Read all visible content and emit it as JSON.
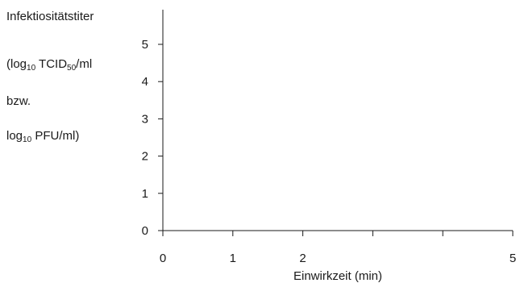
{
  "chart_data": {
    "type": "line",
    "title": "",
    "ylabel_lines": [
      {
        "text": "Infektiositätstiter"
      },
      {
        "pre": "(log",
        "sub1": "10",
        "mid": " TCID",
        "sub2": "50",
        "post": "/ml"
      },
      {
        "text": "bzw."
      },
      {
        "pre": "log",
        "sub1": "10",
        "mid": " PFU/ml)",
        "sub2": "",
        "post": ""
      }
    ],
    "xlabel": "Einwirkzeit (min)",
    "xlim": [
      0,
      5
    ],
    "ylim": [
      0,
      5
    ],
    "x_ticks": [
      0,
      1,
      2,
      3,
      4,
      5
    ],
    "x_tick_labels": [
      "0",
      "1",
      "2",
      "",
      "",
      "5"
    ],
    "y_ticks": [
      0,
      1,
      2,
      3,
      4,
      5
    ],
    "y_tick_labels": [
      "0",
      "1",
      "2",
      "3",
      "4",
      "5"
    ],
    "series": [],
    "grid": false,
    "axis_color": "#1a1a1a"
  }
}
